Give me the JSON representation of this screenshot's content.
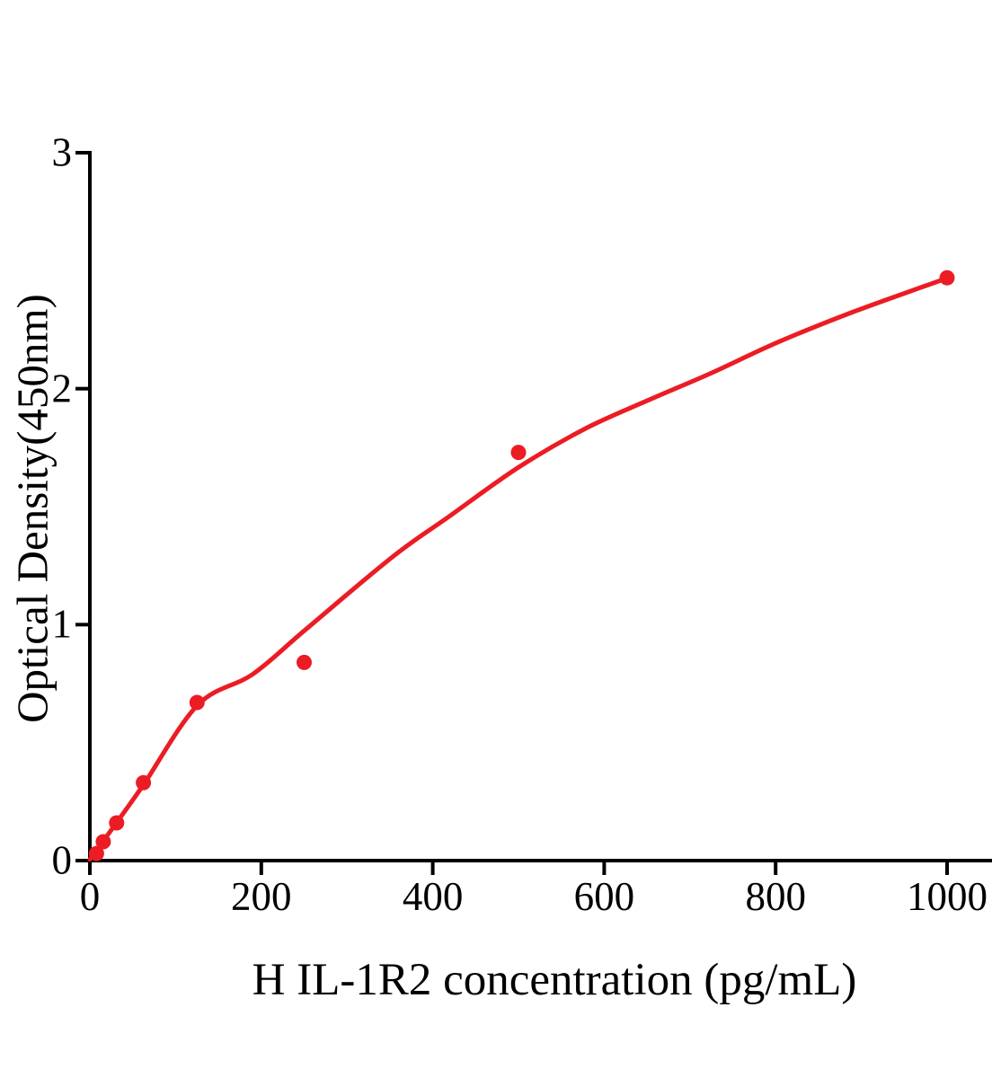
{
  "chart_data": {
    "type": "scatter",
    "title": "",
    "xlabel": "H IL-1R2 concentration (pg/mL)",
    "ylabel": "Optical Density(450nm)",
    "x_ticks": [
      0,
      200,
      400,
      600,
      800,
      1000
    ],
    "y_ticks": [
      0,
      1,
      2,
      3
    ],
    "xlim": [
      0,
      1052
    ],
    "ylim": [
      0,
      3
    ],
    "grid": false,
    "legend": "none",
    "axis_color": "#000000",
    "point_color": "#EC1C24",
    "curve_color": "#EC1C24",
    "points": [
      {
        "x": 7.8,
        "y": 0.03
      },
      {
        "x": 15.6,
        "y": 0.08
      },
      {
        "x": 31.25,
        "y": 0.16
      },
      {
        "x": 62.5,
        "y": 0.33
      },
      {
        "x": 125,
        "y": 0.67
      },
      {
        "x": 250,
        "y": 0.84
      },
      {
        "x": 500,
        "y": 1.73
      },
      {
        "x": 1000,
        "y": 2.47
      }
    ],
    "fitted_curve": {
      "x": [
        0,
        32,
        63,
        126,
        190,
        252,
        353,
        419,
        499,
        576,
        650,
        723,
        802,
        891,
        999
      ],
      "y": [
        0.005,
        0.165,
        0.324,
        0.66,
        0.79,
        0.98,
        1.287,
        1.458,
        1.664,
        1.827,
        1.949,
        2.063,
        2.196,
        2.326,
        2.467
      ]
    }
  }
}
